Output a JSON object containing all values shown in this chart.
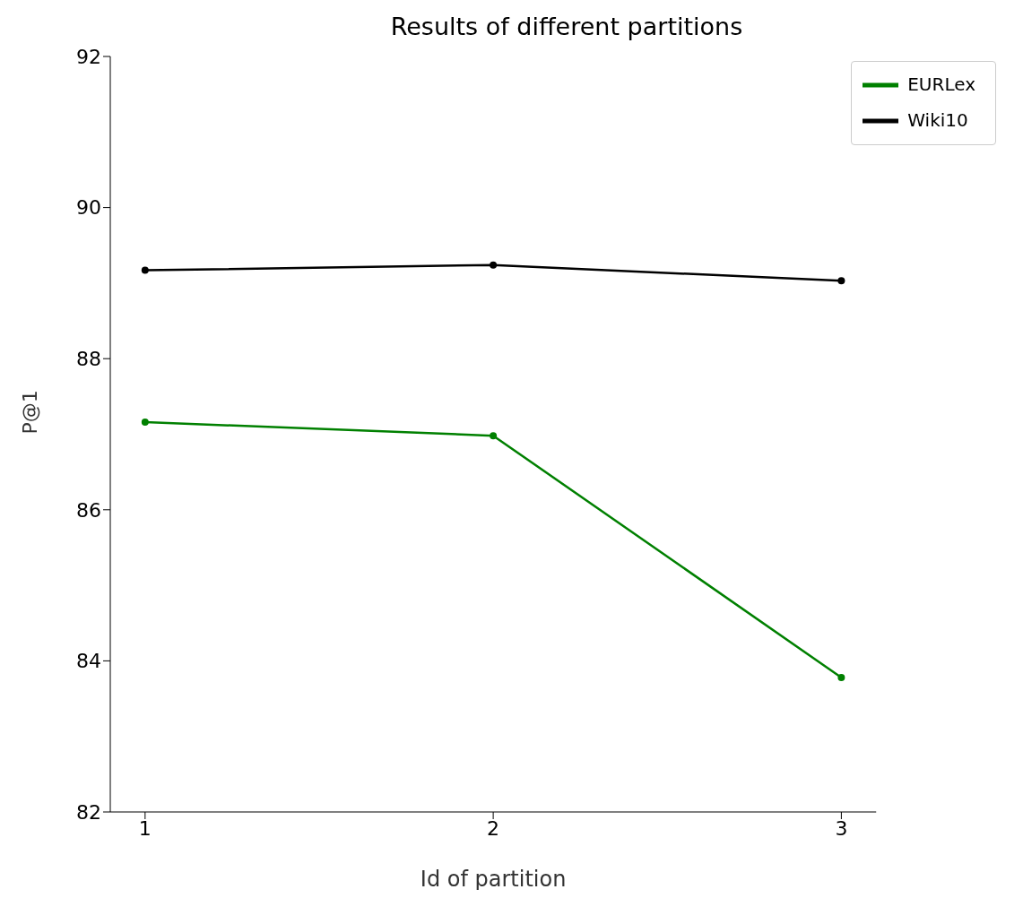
{
  "chart_data": {
    "type": "line",
    "title": "Results of different partitions",
    "xlabel": "Id of partition",
    "ylabel": "P@1",
    "x": [
      1,
      2,
      3
    ],
    "series": [
      {
        "name": "EURLex",
        "color": "#008000",
        "values": [
          87.16,
          86.98,
          83.78
        ]
      },
      {
        "name": "Wiki10",
        "color": "#000000",
        "values": [
          89.17,
          89.24,
          89.03
        ]
      }
    ],
    "xlim": [
      0.9,
      3.1
    ],
    "xticks": [
      1,
      2,
      3
    ],
    "ylim": [
      82,
      92
    ],
    "yticks": [
      82,
      84,
      86,
      88,
      90,
      92
    ],
    "grid": false,
    "legend": "top right",
    "marker": "circle",
    "line_style": "solid"
  }
}
